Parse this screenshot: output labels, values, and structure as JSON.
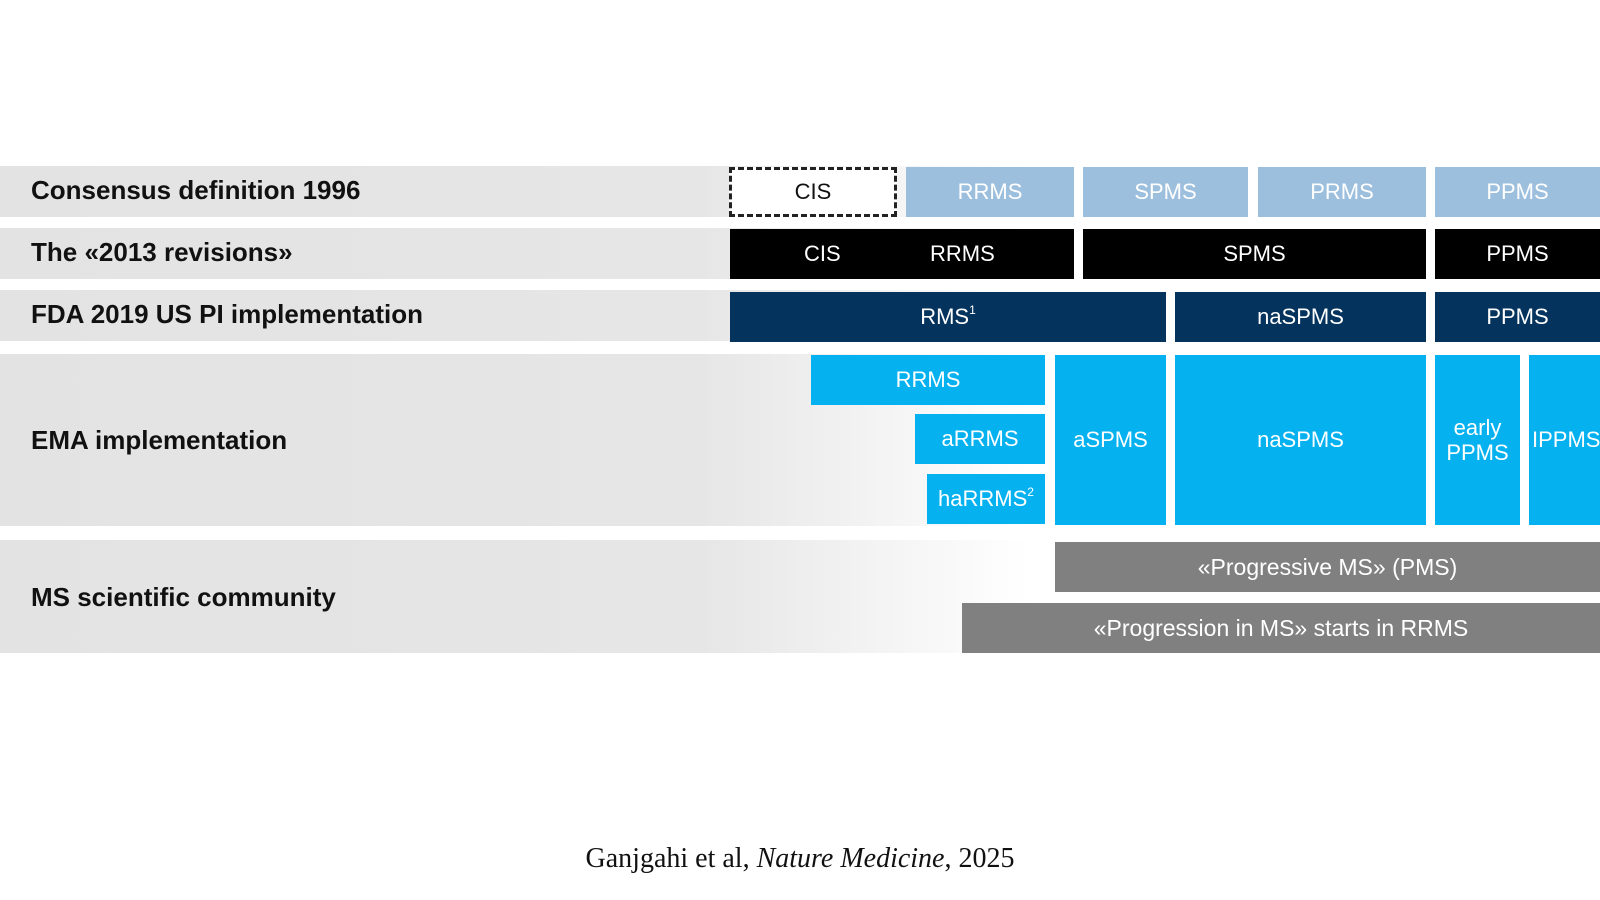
{
  "rows": {
    "r1": {
      "label": "Consensus definition 1996",
      "cis": "CIS",
      "rrms": "RRMS",
      "spms": "SPMS",
      "prms": "PRMS",
      "ppms": "PPMS"
    },
    "r2": {
      "label": "The «2013 revisions»",
      "cis": "CIS",
      "rrms": "RRMS",
      "spms": "SPMS",
      "ppms": "PPMS"
    },
    "r3": {
      "label": "FDA 2019 US PI implementation",
      "rms": "RMS",
      "rms_sup": "1",
      "naspms": "naSPMS",
      "ppms": "PPMS"
    },
    "r4": {
      "label": "EMA implementation",
      "rrms": "RRMS",
      "arrms": "aRRMS",
      "harrms": "haRRMS",
      "harrms_sup": "2",
      "aspms": "aSPMS",
      "naspms": "naSPMS",
      "early_ppms_1": "early",
      "early_ppms_2": "PPMS",
      "ippms": "IPPMS"
    },
    "r5": {
      "label": "MS scientific community",
      "pms": "«Progressive MS» (PMS)",
      "progression": "«Progression in MS» starts in RRMS"
    }
  },
  "citation": {
    "authors": "Ganjgahi et al, ",
    "journal": "Nature Medicine",
    "year": ", 2025"
  },
  "colors": {
    "consensus_1996": "#9dbfde",
    "revisions_2013": "#000000",
    "fda_2019": "#04335d",
    "ema": "#05b1ef",
    "community": "#808080"
  }
}
